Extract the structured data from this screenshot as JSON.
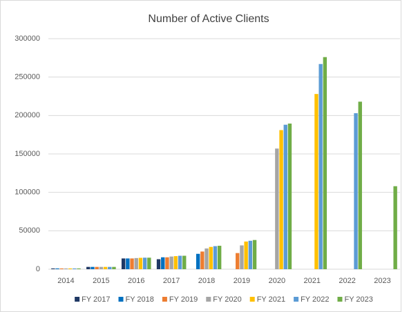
{
  "chart_data": {
    "type": "bar",
    "title": "Number of Active Clients",
    "categories": [
      "2014",
      "2015",
      "2016",
      "2017",
      "2018",
      "2019",
      "2020",
      "2021",
      "2022",
      "2023"
    ],
    "series": [
      {
        "name": "FY 2017",
        "color": "#1f3864",
        "values": [
          1000,
          3000,
          14000,
          13000,
          null,
          null,
          null,
          null,
          null,
          null
        ]
      },
      {
        "name": "FY 2018",
        "color": "#0070c0",
        "values": [
          1000,
          3000,
          14000,
          15500,
          20000,
          null,
          null,
          null,
          null,
          null
        ]
      },
      {
        "name": "FY 2019",
        "color": "#ed7d31",
        "values": [
          1000,
          3000,
          14000,
          15500,
          23000,
          21000,
          null,
          null,
          null,
          null
        ]
      },
      {
        "name": "FY 2020",
        "color": "#a5a5a5",
        "values": [
          1000,
          3000,
          14500,
          16500,
          27000,
          31000,
          157000,
          null,
          null,
          null
        ]
      },
      {
        "name": "FY 2021",
        "color": "#ffc000",
        "values": [
          1000,
          3000,
          14800,
          17000,
          29000,
          36000,
          181000,
          228000,
          null,
          null
        ]
      },
      {
        "name": "FY 2022",
        "color": "#5b9bd5",
        "values": [
          1000,
          3000,
          15000,
          17500,
          30000,
          37000,
          188000,
          267000,
          203000,
          null
        ]
      },
      {
        "name": "FY 2023",
        "color": "#70ad47",
        "values": [
          1000,
          3000,
          15000,
          17500,
          30500,
          38000,
          189500,
          276000,
          218000,
          108000
        ]
      }
    ],
    "ylim": [
      0,
      300000
    ],
    "yticks": [
      0,
      50000,
      100000,
      150000,
      200000,
      250000,
      300000
    ],
    "grid": true,
    "legend": "bottom"
  }
}
